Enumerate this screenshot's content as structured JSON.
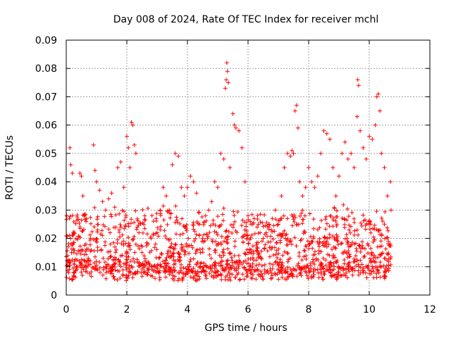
{
  "chart_data": {
    "type": "scatter",
    "title": "Day 008 of 2024, Rate Of TEC Index for receiver mchl",
    "xlabel": "GPS time / hours",
    "ylabel": "ROTI / TECUs",
    "xlim": [
      0,
      12
    ],
    "ylim": [
      0,
      0.09
    ],
    "xticks": [
      0,
      2,
      4,
      6,
      8,
      10,
      12
    ],
    "yticks": [
      0,
      0.01,
      0.02,
      0.03,
      0.04,
      0.05,
      0.06,
      0.07,
      0.08,
      0.09
    ],
    "xtick_labels": [
      "0",
      "2",
      "4",
      "6",
      "8",
      "10",
      "12"
    ],
    "ytick_labels": [
      "0",
      "0.01",
      "0.02",
      "0.03",
      "0.04",
      "0.05",
      "0.06",
      "0.07",
      "0.08",
      "0.09"
    ],
    "grid": true,
    "marker": "plus",
    "color": "#ff0000",
    "series": [
      {
        "name": "ROTI",
        "points": [
          [
            0.05,
            0.012
          ],
          [
            0.1,
            0.021
          ],
          [
            0.12,
            0.052
          ],
          [
            0.15,
            0.046
          ],
          [
            0.2,
            0.043
          ],
          [
            0.25,
            0.015
          ],
          [
            0.35,
            0.01
          ],
          [
            0.45,
            0.043
          ],
          [
            0.5,
            0.042
          ],
          [
            0.55,
            0.035
          ],
          [
            0.6,
            0.028
          ],
          [
            0.65,
            0.018
          ],
          [
            0.7,
            0.012
          ],
          [
            0.8,
            0.02
          ],
          [
            0.9,
            0.053
          ],
          [
            0.95,
            0.044
          ],
          [
            1.0,
            0.04
          ],
          [
            1.05,
            0.025
          ],
          [
            1.1,
            0.037
          ],
          [
            1.2,
            0.033
          ],
          [
            1.3,
            0.03
          ],
          [
            1.4,
            0.034
          ],
          [
            1.5,
            0.036
          ],
          [
            1.6,
            0.031
          ],
          [
            1.7,
            0.045
          ],
          [
            1.8,
            0.047
          ],
          [
            1.9,
            0.038
          ],
          [
            2.0,
            0.056
          ],
          [
            2.05,
            0.052
          ],
          [
            2.1,
            0.045
          ],
          [
            2.15,
            0.061
          ],
          [
            2.2,
            0.06
          ],
          [
            2.25,
            0.053
          ],
          [
            2.3,
            0.05
          ],
          [
            2.4,
            0.022
          ],
          [
            2.5,
            0.015
          ],
          [
            2.6,
            0.012
          ],
          [
            2.7,
            0.018
          ],
          [
            2.8,
            0.02
          ],
          [
            3.0,
            0.022
          ],
          [
            3.1,
            0.03
          ],
          [
            3.2,
            0.038
          ],
          [
            3.3,
            0.035
          ],
          [
            3.4,
            0.03
          ],
          [
            3.5,
            0.046
          ],
          [
            3.6,
            0.05
          ],
          [
            3.7,
            0.049
          ],
          [
            3.8,
            0.038
          ],
          [
            3.9,
            0.035
          ],
          [
            4.0,
            0.038
          ],
          [
            4.1,
            0.042
          ],
          [
            4.2,
            0.04
          ],
          [
            4.3,
            0.036
          ],
          [
            4.4,
            0.025
          ],
          [
            4.5,
            0.02
          ],
          [
            4.6,
            0.028
          ],
          [
            4.7,
            0.03
          ],
          [
            4.8,
            0.033
          ],
          [
            4.9,
            0.04
          ],
          [
            5.0,
            0.038
          ],
          [
            5.1,
            0.05
          ],
          [
            5.2,
            0.048
          ],
          [
            5.25,
            0.073
          ],
          [
            5.28,
            0.076
          ],
          [
            5.3,
            0.082
          ],
          [
            5.32,
            0.079
          ],
          [
            5.35,
            0.075
          ],
          [
            5.4,
            0.045
          ],
          [
            5.5,
            0.064
          ],
          [
            5.55,
            0.06
          ],
          [
            5.6,
            0.059
          ],
          [
            5.7,
            0.058
          ],
          [
            5.8,
            0.052
          ],
          [
            5.9,
            0.04
          ],
          [
            6.0,
            0.028
          ],
          [
            6.1,
            0.025
          ],
          [
            6.2,
            0.027
          ],
          [
            6.3,
            0.024
          ],
          [
            6.4,
            0.022
          ],
          [
            6.5,
            0.02
          ],
          [
            6.6,
            0.022
          ],
          [
            6.7,
            0.025
          ],
          [
            6.8,
            0.027
          ],
          [
            6.9,
            0.03
          ],
          [
            7.0,
            0.025
          ],
          [
            7.1,
            0.035
          ],
          [
            7.2,
            0.045
          ],
          [
            7.3,
            0.05
          ],
          [
            7.4,
            0.049
          ],
          [
            7.45,
            0.051
          ],
          [
            7.5,
            0.05
          ],
          [
            7.55,
            0.065
          ],
          [
            7.6,
            0.067
          ],
          [
            7.65,
            0.059
          ],
          [
            7.7,
            0.04
          ],
          [
            7.8,
            0.035
          ],
          [
            7.9,
            0.038
          ],
          [
            8.0,
            0.045
          ],
          [
            8.1,
            0.04
          ],
          [
            8.2,
            0.038
          ],
          [
            8.3,
            0.042
          ],
          [
            8.4,
            0.05
          ],
          [
            8.5,
            0.058
          ],
          [
            8.6,
            0.057
          ],
          [
            8.7,
            0.055
          ],
          [
            8.8,
            0.045
          ],
          [
            8.9,
            0.035
          ],
          [
            9.0,
            0.042
          ],
          [
            9.1,
            0.05
          ],
          [
            9.2,
            0.054
          ],
          [
            9.3,
            0.048
          ],
          [
            9.4,
            0.05
          ],
          [
            9.5,
            0.045
          ],
          [
            9.6,
            0.063
          ],
          [
            9.62,
            0.076
          ],
          [
            9.65,
            0.074
          ],
          [
            9.7,
            0.058
          ],
          [
            9.8,
            0.052
          ],
          [
            9.9,
            0.048
          ],
          [
            10.0,
            0.056
          ],
          [
            10.1,
            0.055
          ],
          [
            10.2,
            0.06
          ],
          [
            10.25,
            0.07
          ],
          [
            10.3,
            0.071
          ],
          [
            10.35,
            0.065
          ],
          [
            10.4,
            0.05
          ],
          [
            10.5,
            0.045
          ],
          [
            10.6,
            0.035
          ],
          [
            10.7,
            0.04
          ],
          [
            10.72,
            0.03
          ]
        ]
      }
    ],
    "dense_band": {
      "x_start": 0.0,
      "x_end": 10.75,
      "description": "dense cloud of points between roughly 0.005 and 0.03 across the full time span"
    }
  }
}
